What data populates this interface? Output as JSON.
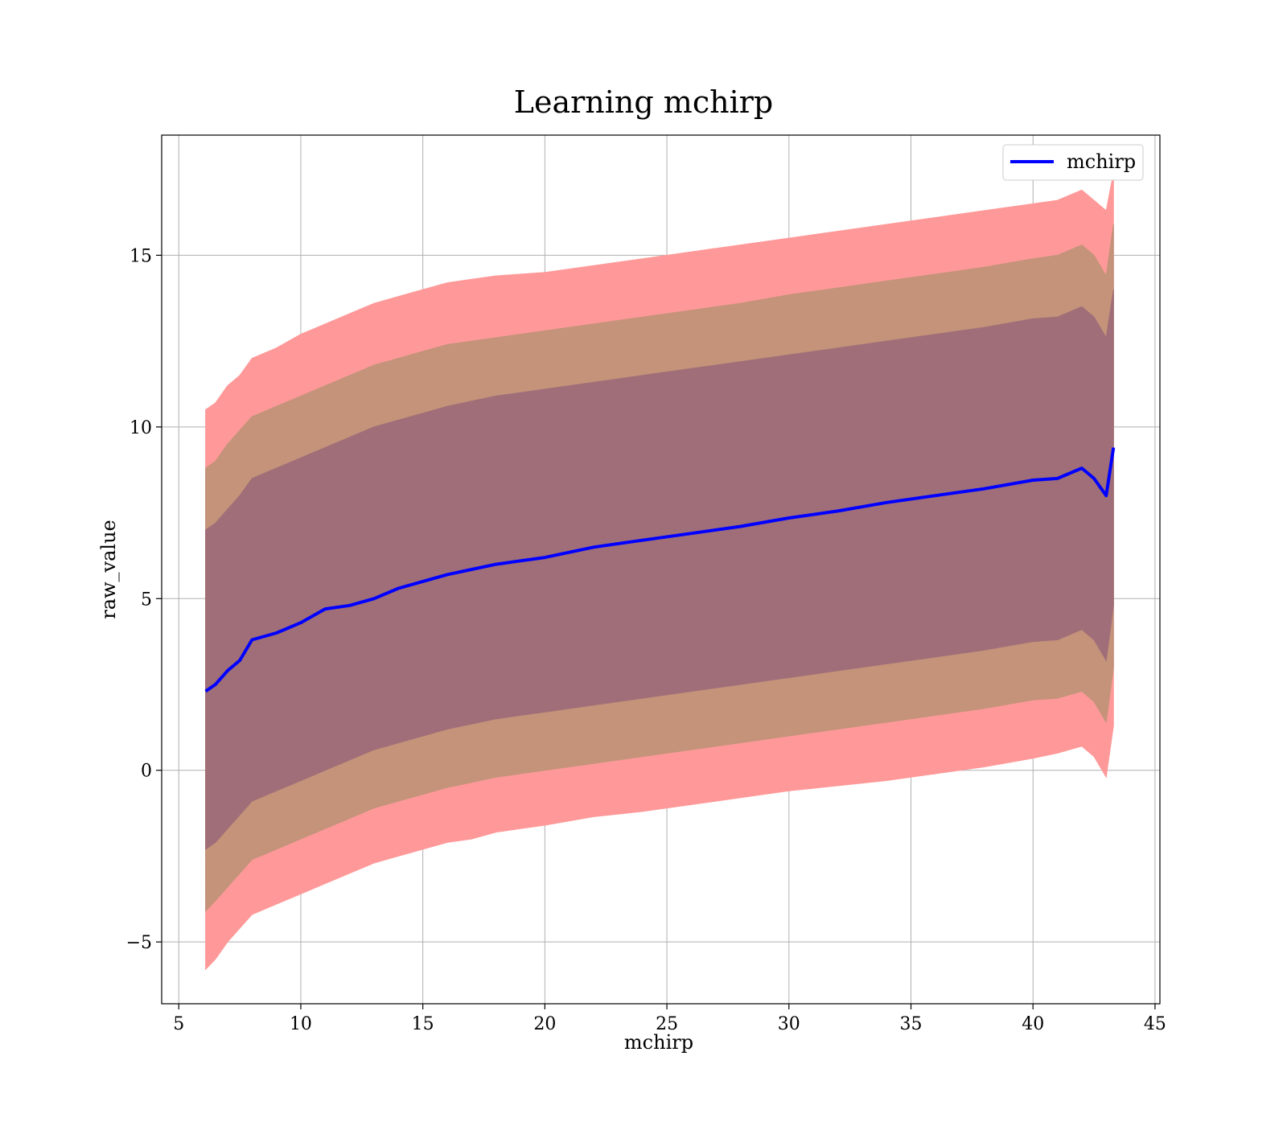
{
  "chart_data": {
    "type": "area",
    "title": "Learning mchirp",
    "xlabel": "mchirp",
    "ylabel": "raw_value",
    "xlim": [
      4.3,
      45.2
    ],
    "ylim": [
      -6.8,
      18.5
    ],
    "x_ticks": [
      5,
      10,
      15,
      20,
      25,
      30,
      35,
      40,
      45
    ],
    "x_tick_labels": [
      "5",
      "10",
      "15",
      "20",
      "25",
      "30",
      "35",
      "40",
      "45"
    ],
    "y_ticks": [
      -5,
      0,
      5,
      10,
      15
    ],
    "y_tick_labels": [
      "−5",
      "0",
      "5",
      "10",
      "15"
    ],
    "grid": true,
    "legend": {
      "position": "top-right",
      "entries": [
        "mchirp"
      ]
    },
    "colors": {
      "line": "#0000ff",
      "band_outer": "#ff9999",
      "band_middle": "#c4937a",
      "band_inner": "#a06e78"
    },
    "x": [
      6.1,
      6.5,
      7.0,
      7.5,
      8.0,
      9.0,
      10.0,
      11.0,
      12.0,
      13.0,
      14.0,
      15.0,
      16.0,
      17.0,
      18.0,
      19.0,
      20.0,
      22.0,
      24.0,
      26.0,
      28.0,
      30.0,
      32.0,
      34.0,
      36.0,
      38.0,
      40.0,
      41.0,
      42.0,
      42.5,
      43.0,
      43.3
    ],
    "series": [
      {
        "name": "mchirp",
        "role": "mean",
        "values": [
          2.3,
          2.5,
          2.9,
          3.2,
          3.8,
          4.0,
          4.3,
          4.7,
          4.8,
          5.0,
          5.3,
          5.5,
          5.7,
          5.85,
          6.0,
          6.1,
          6.2,
          6.5,
          6.7,
          6.9,
          7.1,
          7.35,
          7.55,
          7.8,
          8.0,
          8.2,
          8.45,
          8.5,
          8.8,
          8.5,
          8.0,
          9.4
        ]
      },
      {
        "role": "band_outer_upper",
        "values": [
          10.5,
          10.7,
          11.2,
          11.5,
          12.0,
          12.3,
          12.7,
          13.0,
          13.3,
          13.6,
          13.8,
          14.0,
          14.2,
          14.3,
          14.4,
          14.45,
          14.5,
          14.7,
          14.9,
          15.1,
          15.3,
          15.5,
          15.7,
          15.9,
          16.1,
          16.3,
          16.5,
          16.6,
          16.9,
          16.6,
          16.3,
          17.4
        ]
      },
      {
        "role": "band_outer_lower",
        "values": [
          -5.8,
          -5.5,
          -5.0,
          -4.6,
          -4.2,
          -3.9,
          -3.6,
          -3.3,
          -3.0,
          -2.7,
          -2.5,
          -2.3,
          -2.1,
          -2.0,
          -1.8,
          -1.7,
          -1.6,
          -1.35,
          -1.2,
          -1.0,
          -0.8,
          -0.6,
          -0.45,
          -0.3,
          -0.1,
          0.1,
          0.35,
          0.5,
          0.7,
          0.4,
          -0.2,
          1.3
        ]
      },
      {
        "role": "band_middle_upper",
        "values": [
          8.8,
          9.0,
          9.5,
          9.9,
          10.3,
          10.6,
          10.9,
          11.2,
          11.5,
          11.8,
          12.0,
          12.2,
          12.4,
          12.5,
          12.6,
          12.7,
          12.8,
          13.0,
          13.2,
          13.4,
          13.6,
          13.85,
          14.05,
          14.25,
          14.45,
          14.65,
          14.9,
          15.0,
          15.3,
          15.0,
          14.4,
          15.9
        ]
      },
      {
        "role": "band_middle_lower",
        "values": [
          -4.1,
          -3.8,
          -3.4,
          -3.0,
          -2.6,
          -2.3,
          -2.0,
          -1.7,
          -1.4,
          -1.1,
          -0.9,
          -0.7,
          -0.5,
          -0.35,
          -0.2,
          -0.1,
          0.0,
          0.2,
          0.4,
          0.6,
          0.8,
          1.0,
          1.2,
          1.4,
          1.6,
          1.8,
          2.05,
          2.1,
          2.3,
          2.0,
          1.4,
          3.0
        ]
      },
      {
        "role": "band_inner_upper",
        "values": [
          7.0,
          7.2,
          7.6,
          8.0,
          8.5,
          8.8,
          9.1,
          9.4,
          9.7,
          10.0,
          10.2,
          10.4,
          10.6,
          10.75,
          10.9,
          11.0,
          11.1,
          11.3,
          11.5,
          11.7,
          11.9,
          12.1,
          12.3,
          12.5,
          12.7,
          12.9,
          13.15,
          13.2,
          13.5,
          13.2,
          12.6,
          14.0
        ]
      },
      {
        "role": "band_inner_lower",
        "values": [
          -2.3,
          -2.1,
          -1.7,
          -1.3,
          -0.9,
          -0.6,
          -0.3,
          0.0,
          0.3,
          0.6,
          0.8,
          1.0,
          1.2,
          1.35,
          1.5,
          1.6,
          1.7,
          1.9,
          2.1,
          2.3,
          2.5,
          2.7,
          2.9,
          3.1,
          3.3,
          3.5,
          3.75,
          3.8,
          4.1,
          3.8,
          3.2,
          4.8
        ]
      }
    ]
  }
}
